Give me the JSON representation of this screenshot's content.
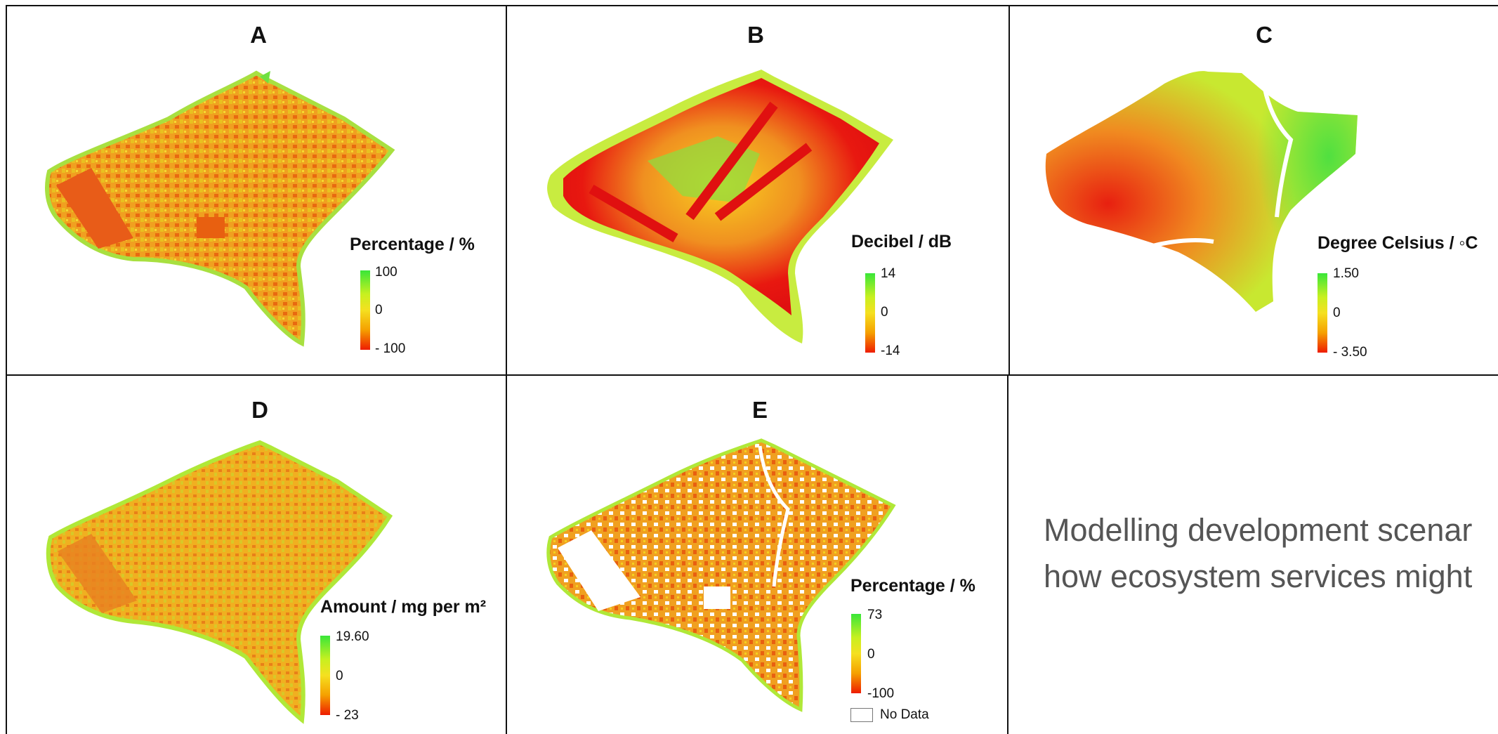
{
  "panels": [
    {
      "letter": "A",
      "legend": {
        "title": "Percentage / %",
        "max": "100",
        "mid": "0",
        "min": "- 100"
      }
    },
    {
      "letter": "B",
      "legend": {
        "title": "Decibel / dB",
        "max": "14",
        "mid": "0",
        "min": "-14"
      }
    },
    {
      "letter": "C",
      "legend": {
        "title": "Degree Celsius / ◦C",
        "max": "1.50",
        "mid": "0",
        "min": "- 3.50"
      }
    },
    {
      "letter": "D",
      "legend": {
        "title": "Amount / mg per m²",
        "max": "19.60",
        "mid": "0",
        "min": "- 23"
      }
    },
    {
      "letter": "E",
      "legend": {
        "title": "Percentage / %",
        "max": "73",
        "mid": "0",
        "min": "-100",
        "nodata": "No Data"
      }
    }
  ],
  "caption": {
    "line1": "Modelling development scenar",
    "line2": "how ecosystem services might"
  },
  "colors": {
    "high": "#39e639",
    "mid": "#f5e020",
    "low": "#ee1c00"
  }
}
